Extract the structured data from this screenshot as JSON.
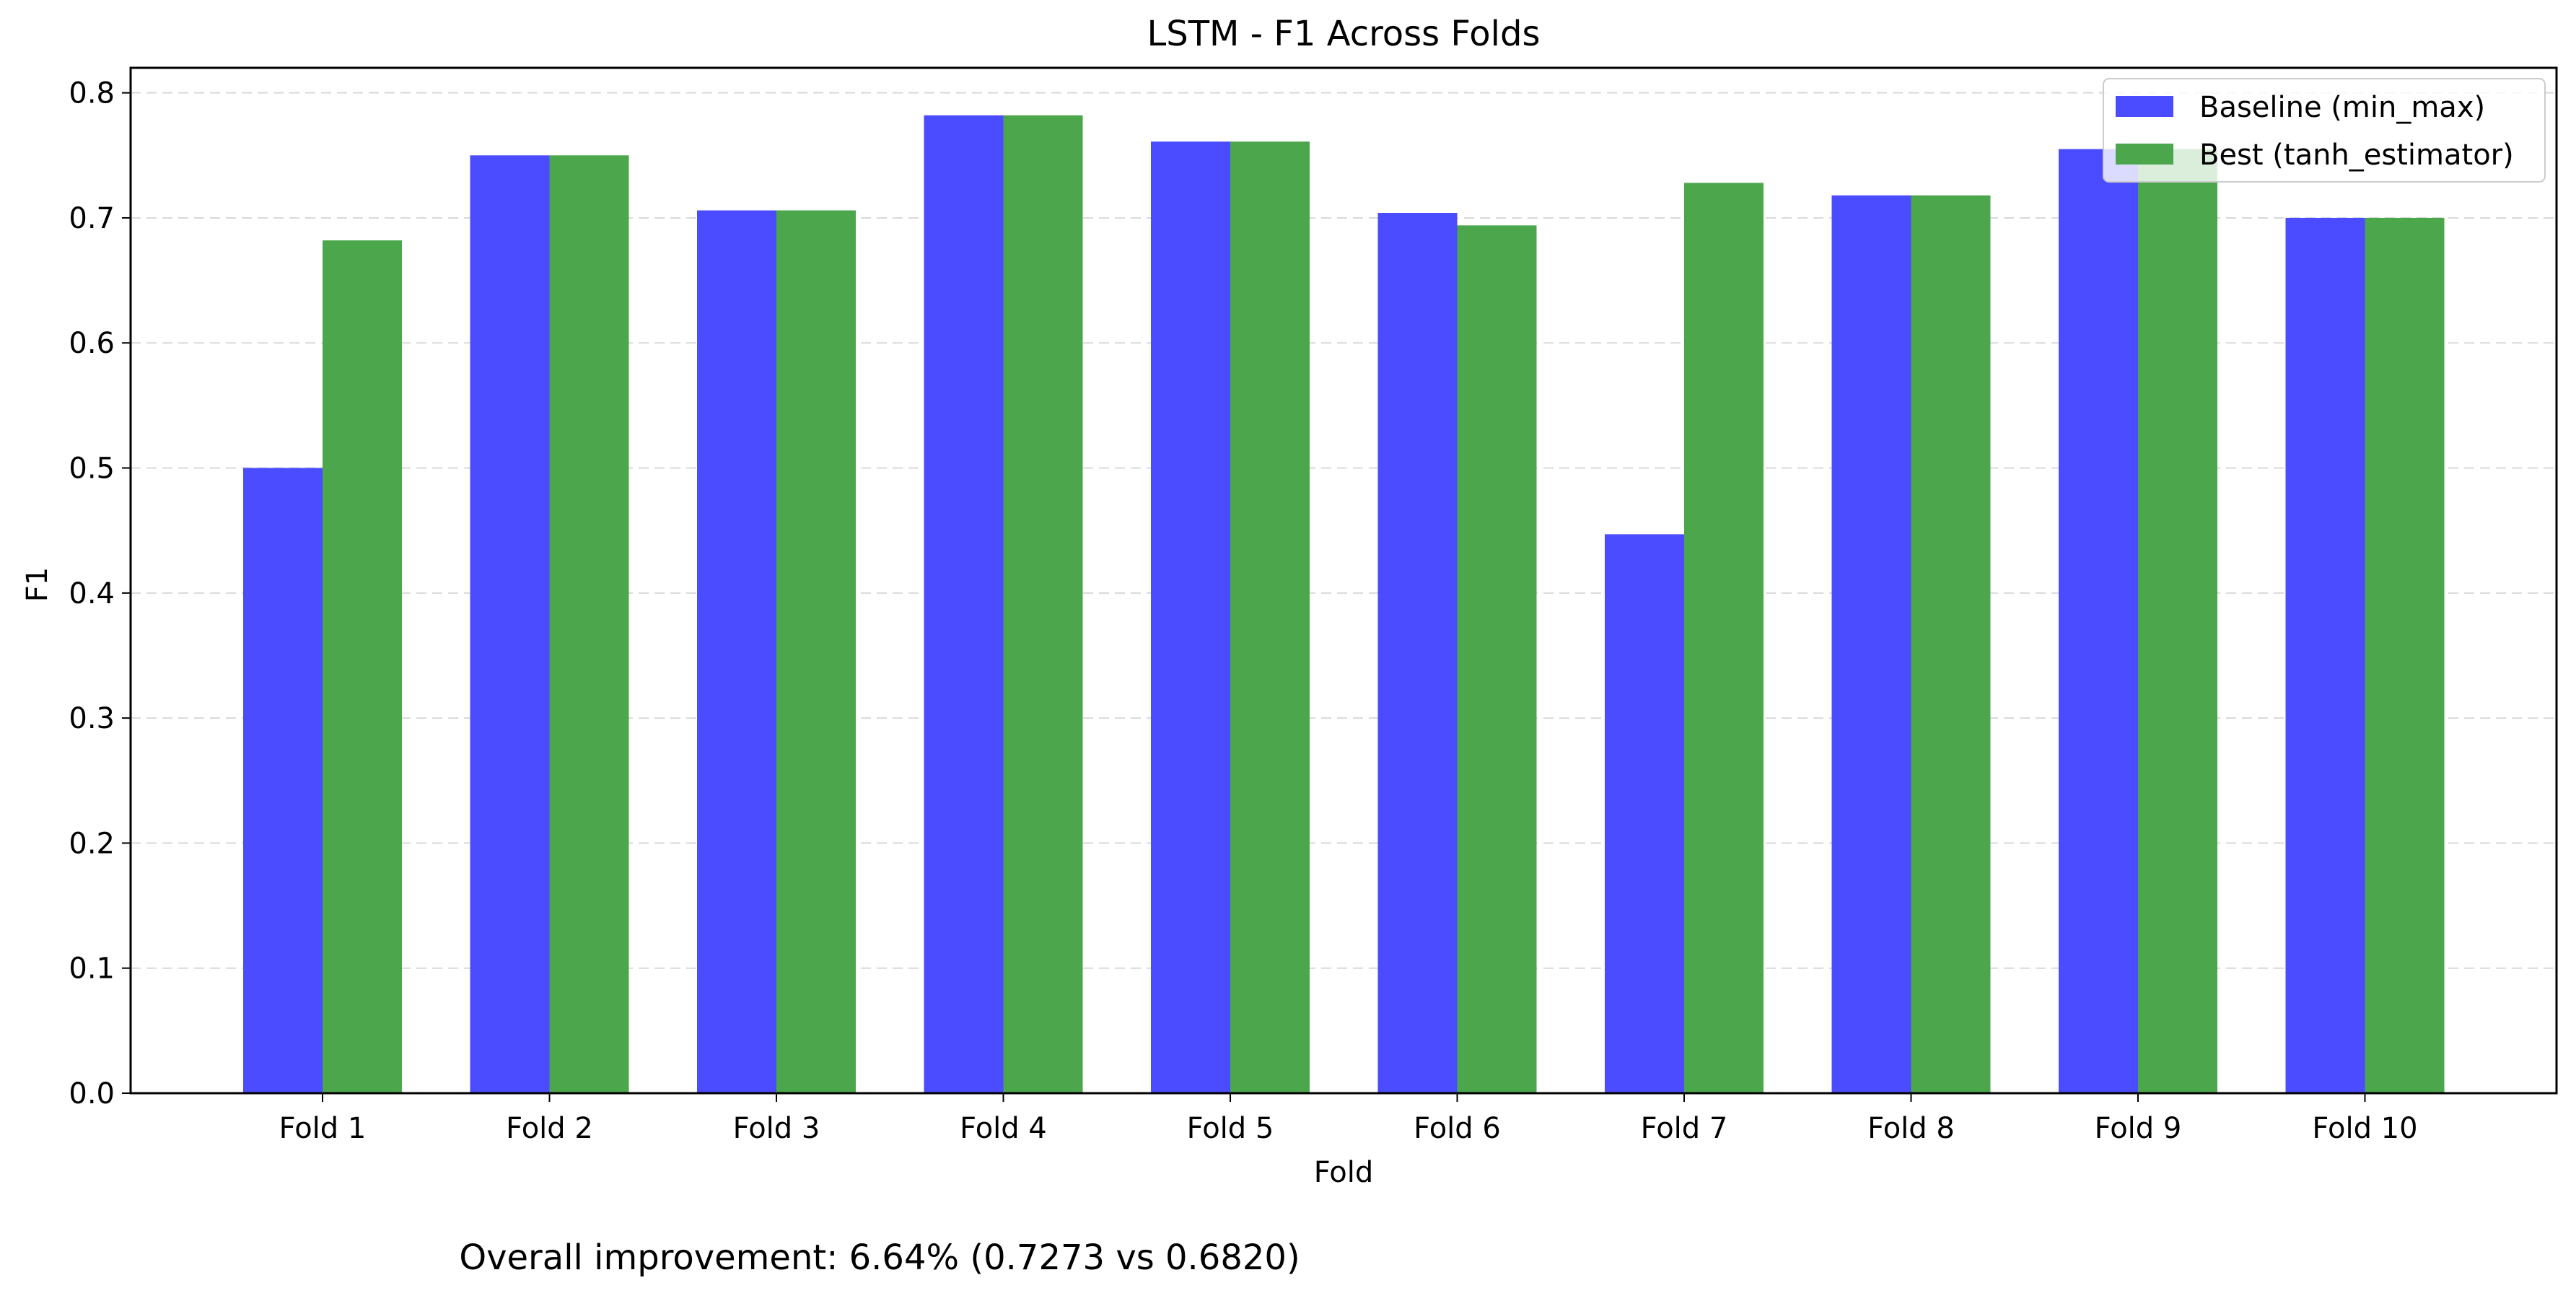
{
  "chart_data": {
    "type": "bar",
    "title": "LSTM - F1 Across Folds",
    "xlabel": "Fold",
    "ylabel": "F1",
    "categories": [
      "Fold 1",
      "Fold 2",
      "Fold 3",
      "Fold 4",
      "Fold 5",
      "Fold 6",
      "Fold 7",
      "Fold 8",
      "Fold 9",
      "Fold 10"
    ],
    "series": [
      {
        "name": "Baseline (min_max)",
        "color": "#4b4bff",
        "values": [
          0.5,
          0.75,
          0.706,
          0.782,
          0.761,
          0.704,
          0.447,
          0.718,
          0.755,
          0.7
        ]
      },
      {
        "name": "Best (tanh_estimator)",
        "color": "#4ca64c",
        "values": [
          0.682,
          0.75,
          0.706,
          0.782,
          0.761,
          0.694,
          0.728,
          0.718,
          0.755,
          0.7
        ]
      }
    ],
    "ylim": [
      0,
      0.82
    ],
    "yticks": [
      "0.0",
      "0.1",
      "0.2",
      "0.3",
      "0.4",
      "0.5",
      "0.6",
      "0.7",
      "0.8"
    ],
    "grid": "horizontal dashed",
    "legend_position": "top-right"
  },
  "footer_text": "Overall improvement: 6.64% (0.7273 vs 0.6820)"
}
